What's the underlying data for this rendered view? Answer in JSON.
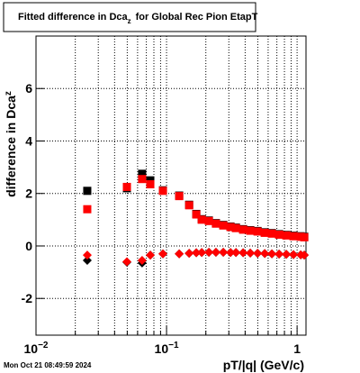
{
  "chart_data": {
    "type": "scatter",
    "title": [
      "Fitted difference in Dca",
      "z",
      "for Global Rec Pion EtapT"
    ],
    "x_label": "pT/|q| (GeV/c)",
    "y_label": [
      "difference in Dca",
      "z"
    ],
    "footer": "Mon Oct 21 08:49:59 2024",
    "xlog": true,
    "grid": true,
    "xlim": [
      0.01,
      1.17
    ],
    "ylim": [
      -3.4,
      8
    ],
    "xticks": [
      {
        "value": 0.01,
        "label": "10",
        "exponent": "−2"
      },
      {
        "value": 0.1,
        "label": "10",
        "exponent": "−1"
      },
      {
        "value": 1,
        "label": "1"
      }
    ],
    "xminorticks": [
      0.02,
      0.03,
      0.04,
      0.05,
      0.06,
      0.07,
      0.08,
      0.09,
      0.2,
      0.3,
      0.4,
      0.5,
      0.6,
      0.7,
      0.8,
      0.9
    ],
    "yticks": [
      -2,
      0,
      2,
      4,
      6
    ],
    "x": [
      0.0247,
      0.0497,
      0.065,
      0.0751,
      0.0938,
      0.125,
      0.149,
      0.169,
      0.186,
      0.211,
      0.239,
      0.272,
      0.309,
      0.34,
      0.386,
      0.438,
      0.498,
      0.565,
      0.641,
      0.728,
      0.827,
      0.938,
      1.066,
      1.135
    ],
    "series": [
      {
        "marker": "square",
        "color": "#000000",
        "values": [
          2.1,
          2.2,
          2.75,
          2.5,
          2.12,
          1.92,
          1.57,
          1.22,
          1.02,
          0.97,
          0.87,
          0.8,
          0.74,
          0.7,
          0.64,
          0.6,
          0.57,
          0.52,
          0.49,
          0.45,
          0.42,
          0.39,
          0.37,
          0.35
        ]
      },
      {
        "marker": "square",
        "color": "#ff0000",
        "values": [
          1.4,
          2.25,
          2.55,
          2.35,
          2.1,
          1.9,
          1.55,
          1.2,
          1.0,
          0.95,
          0.85,
          0.78,
          0.72,
          0.68,
          0.62,
          0.58,
          0.55,
          0.5,
          0.47,
          0.43,
          0.4,
          0.37,
          0.35,
          0.33
        ]
      },
      {
        "marker": "diamond",
        "color": "#000000",
        "values": [
          -0.55,
          -0.62,
          -0.65,
          -0.35,
          -0.3,
          -0.3,
          -0.28,
          -0.26,
          -0.25,
          -0.24,
          -0.24,
          -0.24,
          -0.25,
          -0.25,
          -0.26,
          -0.27,
          -0.28,
          -0.29,
          -0.3,
          -0.31,
          -0.32,
          -0.33,
          -0.34,
          -0.35
        ]
      },
      {
        "marker": "diamond",
        "color": "#ff0000",
        "values": [
          -0.35,
          -0.6,
          -0.55,
          -0.35,
          -0.3,
          -0.3,
          -0.28,
          -0.26,
          -0.25,
          -0.24,
          -0.24,
          -0.24,
          -0.25,
          -0.25,
          -0.26,
          -0.27,
          -0.28,
          -0.29,
          -0.3,
          -0.31,
          -0.32,
          -0.33,
          -0.34,
          -0.35
        ]
      }
    ]
  }
}
